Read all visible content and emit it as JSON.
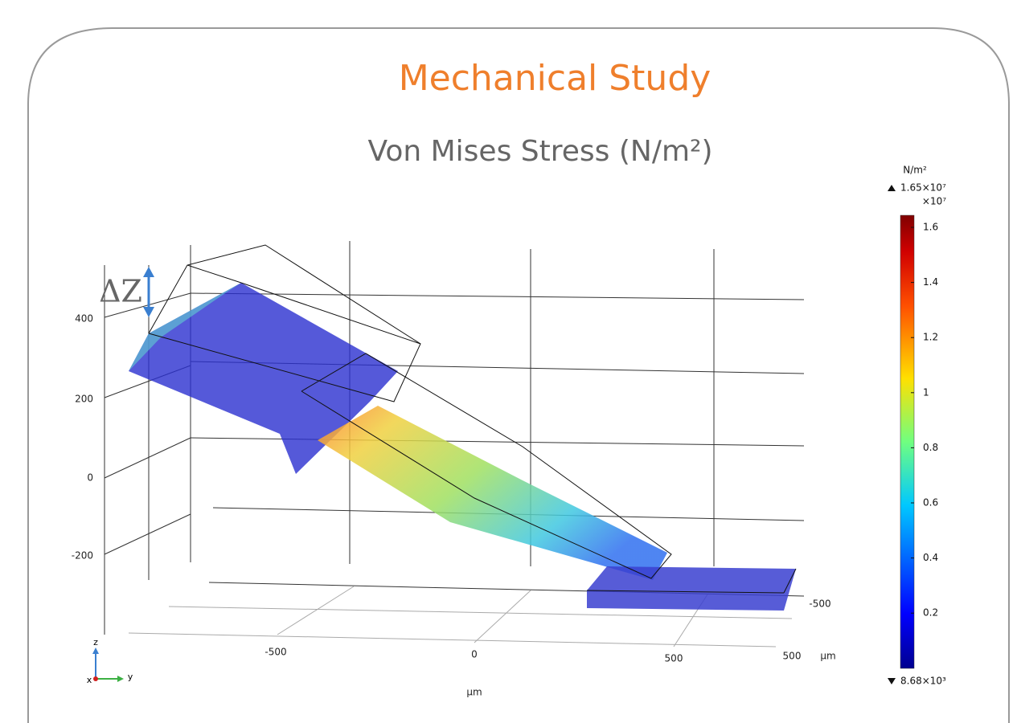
{
  "header": {
    "title": "Mechanical Study",
    "subtitle": "Von Mises Stress (N/m²)"
  },
  "plot": {
    "delta_label": "ΔZ",
    "z_ticks": [
      "400",
      "200",
      "0",
      "-200"
    ],
    "y_ticks": [
      "-500",
      "0",
      "500"
    ],
    "x_tick": "-500",
    "x_end_tick": "500",
    "x_unit": "μm",
    "y_unit": "μm",
    "triad": {
      "z": "z",
      "y": "y",
      "x": "x"
    }
  },
  "colorbar": {
    "unit": "N/m²",
    "max": "1.65×10⁷",
    "multiplier": "×10⁷",
    "ticks": [
      "1.6",
      "1.4",
      "1.2",
      "1",
      "0.8",
      "0.6",
      "0.4",
      "0.2"
    ],
    "min": "8.68×10³"
  }
}
